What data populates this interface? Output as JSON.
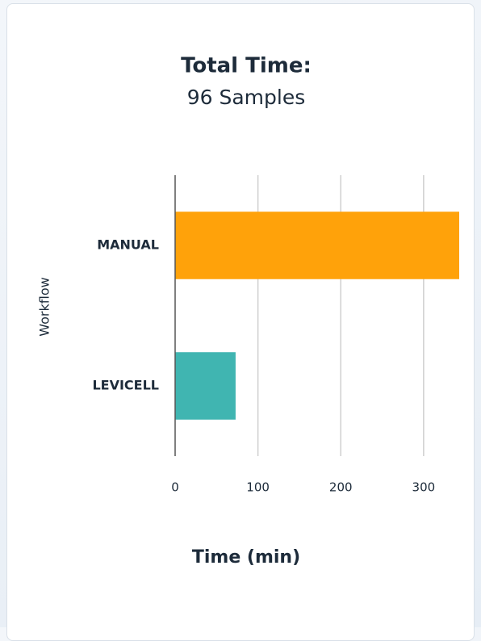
{
  "chart_data": {
    "type": "barh",
    "title": "Total Time:",
    "subtitle": "96 Samples",
    "categories": [
      "MANUAL",
      "LEVICELL"
    ],
    "values": [
      343,
      73
    ],
    "colors": [
      "#ffa20a",
      "#40b5b1"
    ],
    "xlim": [
      0,
      343
    ],
    "xticks": [
      0,
      100,
      200,
      300
    ],
    "grid": true,
    "xlabel": "Time (min)",
    "ylabel": "Workflow"
  }
}
